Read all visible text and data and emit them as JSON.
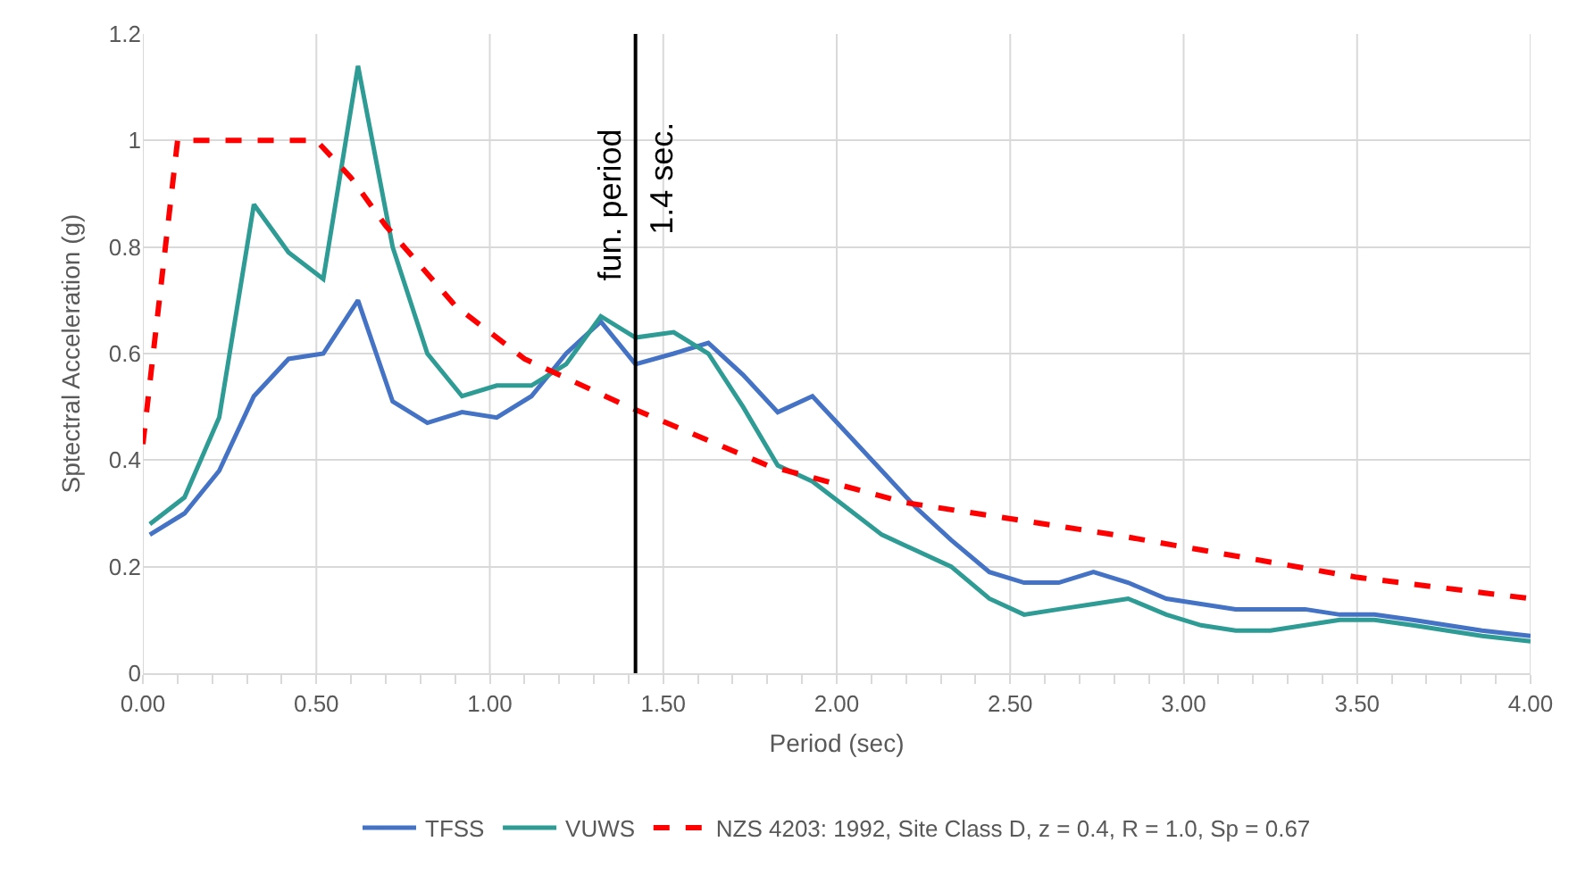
{
  "chart_data": {
    "type": "line",
    "xlabel": "Period (sec)",
    "ylabel": "Sptectral Acceleration (g)",
    "xlim": [
      0,
      4
    ],
    "ylim": [
      0,
      1.2
    ],
    "xticks": [
      {
        "value": 0,
        "label": "0.00"
      },
      {
        "value": 0.1,
        "label": null
      },
      {
        "value": 0.2,
        "label": null
      },
      {
        "value": 0.3,
        "label": null
      },
      {
        "value": 0.4,
        "label": null
      },
      {
        "value": 0.5,
        "label": "0.50"
      },
      {
        "value": 0.6,
        "label": null
      },
      {
        "value": 0.7,
        "label": null
      },
      {
        "value": 0.8,
        "label": null
      },
      {
        "value": 0.9,
        "label": null
      },
      {
        "value": 1,
        "label": "1.00"
      },
      {
        "value": 1.1,
        "label": null
      },
      {
        "value": 1.2,
        "label": null
      },
      {
        "value": 1.3,
        "label": null
      },
      {
        "value": 1.4,
        "label": null
      },
      {
        "value": 1.5,
        "label": "1.50"
      },
      {
        "value": 1.6,
        "label": null
      },
      {
        "value": 1.7,
        "label": null
      },
      {
        "value": 1.8,
        "label": null
      },
      {
        "value": 1.9,
        "label": null
      },
      {
        "value": 2,
        "label": "2.00"
      },
      {
        "value": 2.1,
        "label": null
      },
      {
        "value": 2.2,
        "label": null
      },
      {
        "value": 2.3,
        "label": null
      },
      {
        "value": 2.4,
        "label": null
      },
      {
        "value": 2.5,
        "label": "2.50"
      },
      {
        "value": 2.6,
        "label": null
      },
      {
        "value": 2.7,
        "label": null
      },
      {
        "value": 2.8,
        "label": null
      },
      {
        "value": 2.9,
        "label": null
      },
      {
        "value": 3,
        "label": "3.00"
      },
      {
        "value": 3.1,
        "label": null
      },
      {
        "value": 3.2,
        "label": null
      },
      {
        "value": 3.3,
        "label": null
      },
      {
        "value": 3.4,
        "label": null
      },
      {
        "value": 3.5,
        "label": "3.50"
      },
      {
        "value": 3.6,
        "label": null
      },
      {
        "value": 3.7,
        "label": null
      },
      {
        "value": 3.8,
        "label": null
      },
      {
        "value": 3.9,
        "label": null
      },
      {
        "value": 4,
        "label": "4.00"
      }
    ],
    "yticks": [
      0,
      0.2,
      0.4,
      0.6,
      0.8,
      1,
      1.2
    ],
    "grid": true,
    "legend": "bottom",
    "marker": "none",
    "x": [
      0.02,
      0.12,
      0.22,
      0.32,
      0.42,
      0.52,
      0.62,
      0.72,
      0.82,
      0.92,
      1.02,
      1.12,
      1.22,
      1.32,
      1.42,
      1.53,
      1.63,
      1.73,
      1.83,
      1.93,
      2.03,
      2.13,
      2.23,
      2.33,
      2.44,
      2.54,
      2.64,
      2.74,
      2.84,
      2.95,
      3.05,
      3.15,
      3.25,
      3.35,
      3.45,
      3.55,
      3.66,
      3.76,
      3.86,
      4.0
    ],
    "series": [
      {
        "name": "TFSS",
        "color": "#4472c4",
        "line_style": "solid",
        "values": [
          0.26,
          0.3,
          0.38,
          0.52,
          0.59,
          0.6,
          0.7,
          0.51,
          0.47,
          0.49,
          0.48,
          0.52,
          0.6,
          0.66,
          0.58,
          0.6,
          0.62,
          0.56,
          0.49,
          0.52,
          0.45,
          0.38,
          0.31,
          0.25,
          0.19,
          0.17,
          0.17,
          0.19,
          0.17,
          0.14,
          0.13,
          0.12,
          0.12,
          0.12,
          0.11,
          0.11,
          0.1,
          0.09,
          0.08,
          0.07
        ]
      },
      {
        "name": "VUWS",
        "color": "#2e9b95",
        "line_style": "solid",
        "values": [
          0.28,
          0.33,
          0.48,
          0.88,
          0.79,
          0.74,
          1.14,
          0.8,
          0.6,
          0.52,
          0.54,
          0.54,
          0.58,
          0.67,
          0.63,
          0.64,
          0.6,
          0.5,
          0.39,
          0.36,
          0.31,
          0.26,
          0.23,
          0.2,
          0.14,
          0.11,
          0.12,
          0.13,
          0.14,
          0.11,
          0.09,
          0.08,
          0.08,
          0.09,
          0.1,
          0.1,
          0.09,
          0.08,
          0.07,
          0.06
        ]
      },
      {
        "name": "NZS 4203: 1992, Site Class D, z = 0.4, R = 1.0, Sp = 0.67",
        "color": "#ff0000",
        "line_style": "dashed",
        "x": [
          0,
          0.1,
          0.5,
          0.6,
          0.7,
          0.9,
          1.1,
          1.3,
          1.4,
          1.8,
          2.2,
          2.7,
          2.8,
          3.5,
          4.0
        ],
        "values": [
          0.43,
          1.0,
          1.0,
          0.93,
          0.84,
          0.69,
          0.59,
          0.53,
          0.5,
          0.39,
          0.32,
          0.27,
          0.26,
          0.18,
          0.14
        ]
      }
    ],
    "ref_lines": [
      {
        "axis": "x",
        "value": 1.42,
        "label": "fun. period",
        "color": "#000000"
      }
    ],
    "annotations": [
      {
        "text": "1.4 sec.",
        "x": 1.42,
        "y": 0.93
      }
    ]
  }
}
